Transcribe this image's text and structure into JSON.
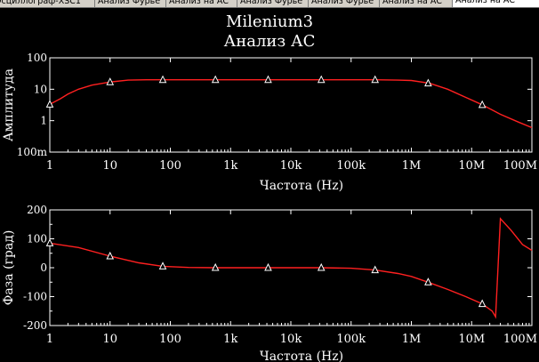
{
  "tabs": [
    {
      "label": "Осциллограф-XSC1",
      "active": false
    },
    {
      "label": "Анализ Фурье",
      "active": false
    },
    {
      "label": "Анализ на АС",
      "active": false
    },
    {
      "label": "Анализ Фурье",
      "active": false
    },
    {
      "label": "Анализ Фурье",
      "active": false
    },
    {
      "label": "Анализ на АС",
      "active": false
    },
    {
      "label": "Анализ на АС",
      "active": true
    }
  ],
  "title": "Milenium3",
  "subtitle": "Анализ АС",
  "colors": {
    "background": "#000000",
    "trace": "#ff2020",
    "marker": "#ffffff",
    "axes": "#ffffff"
  },
  "chart_data": [
    {
      "type": "line",
      "ylabel": "Амплитуда",
      "xlabel": "Частота (Hz)",
      "x_scale": "log",
      "y_scale": "log",
      "xlim": [
        1,
        100000000
      ],
      "ylim": [
        0.1,
        100
      ],
      "x_ticks": [
        "1",
        "10",
        "100",
        "1k",
        "10k",
        "100k",
        "1M",
        "10M",
        "100M"
      ],
      "y_ticks": [
        "100m",
        "1",
        "10",
        "100"
      ],
      "grid": false,
      "series": [
        {
          "x": [
            1,
            1.5,
            2,
            3,
            5,
            10,
            20,
            40,
            75,
            200,
            1000,
            10000,
            100000,
            250000,
            600000,
            1000000,
            2000000,
            4000000,
            8000000,
            15000000,
            30000000,
            60000000,
            100000000
          ],
          "y": [
            3.3,
            5,
            7,
            10,
            13.5,
            17,
            19.5,
            20,
            20,
            20,
            20,
            20,
            20,
            20,
            19.5,
            19,
            15.5,
            10,
            5.5,
            3.2,
            1.6,
            0.9,
            0.6
          ]
        }
      ],
      "markers": {
        "x": [
          1,
          10,
          75,
          560,
          4200,
          32000,
          250000,
          1900000,
          15000000
        ],
        "y": [
          3.3,
          17,
          20,
          20,
          20,
          20,
          20,
          15.5,
          3.2
        ]
      }
    },
    {
      "type": "line",
      "ylabel": "Фаза (град)",
      "xlabel": "Частота (Hz)",
      "x_scale": "log",
      "xlim": [
        1,
        100000000
      ],
      "ylim": [
        -200,
        200
      ],
      "x_ticks": [
        "1",
        "10",
        "100",
        "1k",
        "10k",
        "100k",
        "1M",
        "10M",
        "100M"
      ],
      "y_ticks": [
        "200",
        "100",
        "0",
        "-100",
        "-200"
      ],
      "grid": false,
      "series": [
        {
          "x": [
            1,
            3,
            10,
            30,
            75,
            200,
            560,
            4200,
            32000,
            100000,
            250000,
            600000,
            1000000,
            1900000,
            4000000,
            8000000,
            15000000,
            22000000,
            25000000,
            30000000,
            45000000,
            70000000,
            100000000
          ],
          "y": [
            85,
            70,
            40,
            17,
            5,
            1,
            0,
            0,
            0,
            -2,
            -8,
            -20,
            -30,
            -50,
            -75,
            -100,
            -125,
            -150,
            -170,
            170,
            130,
            80,
            60
          ]
        }
      ],
      "markers": {
        "x": [
          1,
          10,
          75,
          560,
          4200,
          32000,
          250000,
          1900000,
          15000000
        ],
        "y": [
          85,
          40,
          5,
          0,
          0,
          0,
          -8,
          -50,
          -125
        ]
      }
    }
  ]
}
